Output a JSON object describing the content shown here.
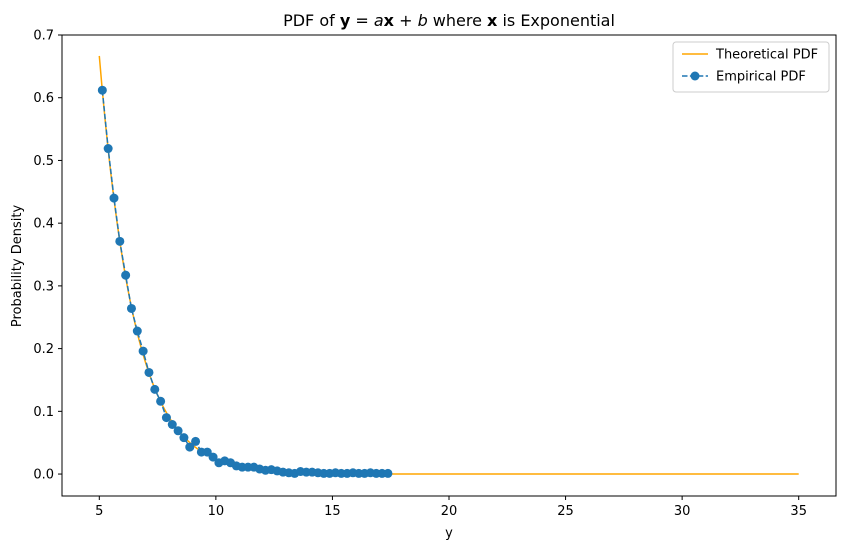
{
  "chart_data": {
    "type": "line",
    "title": {
      "prefix": "PDF of ",
      "y_bold": "y",
      "eq": " = ",
      "a_italic": "a",
      "x_bold": "x",
      "plus": " + ",
      "b_italic": "b",
      "mid": " where ",
      "x2_bold": "x",
      "suffix": " is Exponential"
    },
    "xlabel": "y",
    "ylabel": "Probability Density",
    "xlim": [
      3.4,
      36.6
    ],
    "ylim": [
      -0.035,
      0.7
    ],
    "x_ticks": [
      5,
      10,
      15,
      20,
      25,
      30,
      35
    ],
    "x_tick_labels": [
      "5",
      "10",
      "15",
      "20",
      "25",
      "30",
      "35"
    ],
    "y_ticks": [
      0.0,
      0.1,
      0.2,
      0.3,
      0.4,
      0.5,
      0.6,
      0.7
    ],
    "y_tick_labels": [
      "0.0",
      "0.1",
      "0.2",
      "0.3",
      "0.4",
      "0.5",
      "0.6",
      "0.7"
    ],
    "grid": false,
    "legend_position": "top-right",
    "series": [
      {
        "name": "Theoretical PDF",
        "color": "#ffa500",
        "style": "solid",
        "function": "0.6667 * exp(-(y - 5) / 1.5)",
        "x_range": [
          5,
          35
        ]
      },
      {
        "name": "Empirical PDF",
        "color": "#1f77b4",
        "style": "dashed-with-markers",
        "x": [
          5.13,
          5.38,
          5.63,
          5.88,
          6.13,
          6.38,
          6.63,
          6.88,
          7.13,
          7.38,
          7.63,
          7.88,
          8.13,
          8.38,
          8.63,
          8.88,
          9.13,
          9.38,
          9.63,
          9.88,
          10.13,
          10.38,
          10.63,
          10.88,
          11.13,
          11.38,
          11.63,
          11.88,
          12.13,
          12.38,
          12.63,
          12.88,
          13.13,
          13.38,
          13.63,
          13.88,
          14.13,
          14.38,
          14.63,
          14.88,
          15.13,
          15.38,
          15.63,
          15.88,
          16.13,
          16.38,
          16.63,
          16.88,
          17.13,
          17.38
        ],
        "y": [
          0.612,
          0.519,
          0.44,
          0.371,
          0.317,
          0.264,
          0.228,
          0.196,
          0.162,
          0.135,
          0.116,
          0.09,
          0.079,
          0.069,
          0.058,
          0.043,
          0.052,
          0.035,
          0.035,
          0.027,
          0.018,
          0.021,
          0.018,
          0.013,
          0.011,
          0.011,
          0.011,
          0.008,
          0.006,
          0.007,
          0.005,
          0.003,
          0.002,
          0.001,
          0.004,
          0.003,
          0.003,
          0.002,
          0.001,
          0.001,
          0.002,
          0.001,
          0.001,
          0.002,
          0.001,
          0.001,
          0.002,
          0.001,
          0.001,
          0.001
        ]
      }
    ]
  }
}
